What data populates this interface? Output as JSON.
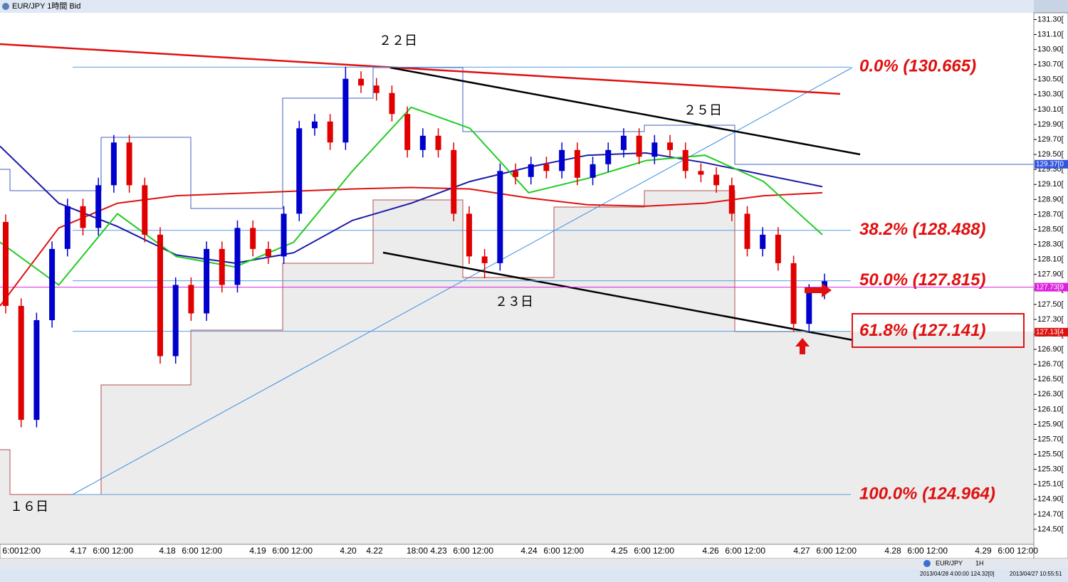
{
  "window_title": "EUR/JPY 1時間 Bid",
  "chart_data": {
    "type": "candlestick",
    "ylim": [
      124.3,
      131.39
    ],
    "yticks": [
      {
        "value": 124.5,
        "label": "124.50["
      },
      {
        "value": 124.7,
        "label": "124.70["
      },
      {
        "value": 124.9,
        "label": "124.90["
      },
      {
        "value": 125.1,
        "label": "125.10["
      },
      {
        "value": 125.3,
        "label": "125.30["
      },
      {
        "value": 125.5,
        "label": "125.50["
      },
      {
        "value": 125.7,
        "label": "125.70["
      },
      {
        "value": 125.9,
        "label": "125.90["
      },
      {
        "value": 126.1,
        "label": "126.10["
      },
      {
        "value": 126.3,
        "label": "126.30["
      },
      {
        "value": 126.5,
        "label": "126.50["
      },
      {
        "value": 126.7,
        "label": "126.70["
      },
      {
        "value": 126.9,
        "label": "126.90["
      },
      {
        "value": 127.1,
        "label": "127.10["
      },
      {
        "value": 127.3,
        "label": "127.30["
      },
      {
        "value": 127.5,
        "label": "127.50["
      },
      {
        "value": 127.7,
        "label": "127.70["
      },
      {
        "value": 127.9,
        "label": "127.90["
      },
      {
        "value": 128.1,
        "label": "128.10["
      },
      {
        "value": 128.3,
        "label": "128.30["
      },
      {
        "value": 128.5,
        "label": "128.50["
      },
      {
        "value": 128.7,
        "label": "128.70["
      },
      {
        "value": 128.9,
        "label": "128.90["
      },
      {
        "value": 129.1,
        "label": "129.10["
      },
      {
        "value": 129.3,
        "label": "129.30["
      },
      {
        "value": 129.5,
        "label": "129.50["
      },
      {
        "value": 129.7,
        "label": "129.70["
      },
      {
        "value": 129.9,
        "label": "129.90["
      },
      {
        "value": 130.1,
        "label": "130.10["
      },
      {
        "value": 130.3,
        "label": "130.30["
      },
      {
        "value": 130.5,
        "label": "130.50["
      },
      {
        "value": 130.7,
        "label": "130.70["
      },
      {
        "value": 130.9,
        "label": "130.90["
      },
      {
        "value": 131.1,
        "label": "131.10["
      },
      {
        "value": 131.3,
        "label": "131.30["
      }
    ],
    "x_labels": [
      "6:00",
      "12:00",
      "4.17",
      "6:00",
      "12:00",
      "4.18",
      "6:00",
      "12:00",
      "4.19",
      "6:00",
      "12:00",
      "4.20",
      "4.22",
      "18:00",
      "4.23",
      "6:00",
      "12:00",
      "4.24",
      "6:00",
      "12:00",
      "4.25",
      "6:00",
      "12:00",
      "4.26",
      "6:00",
      "12:00",
      "4.27",
      "6:00",
      "12:00",
      "4.28",
      "6:00",
      "12:00",
      "4.29",
      "6:00",
      "12:00"
    ],
    "up_color": "#0000cc",
    "down_color": "#e00000",
    "candles": {
      "open": [
        128.6,
        127.48,
        125.96,
        127.29,
        128.24,
        128.81,
        128.52,
        129.09,
        129.66,
        129.09,
        128.43,
        126.81,
        127.76,
        127.38,
        128.24,
        127.76,
        128.52,
        128.24,
        128.14,
        128.71,
        129.85,
        129.94,
        129.66,
        130.51,
        130.42,
        130.32,
        130.04,
        129.56,
        129.75,
        129.56,
        128.71,
        128.14,
        128.05,
        129.28,
        129.2,
        129.37,
        129.28,
        129.56,
        129.19,
        129.37,
        129.56,
        129.75,
        129.47,
        129.66,
        129.56,
        129.28,
        129.23,
        129.09,
        128.71,
        128.24,
        128.43,
        128.05,
        127.24,
        127.67
      ],
      "high": [
        128.7,
        127.58,
        127.39,
        128.34,
        128.91,
        128.91,
        129.19,
        129.76,
        129.76,
        129.19,
        128.53,
        127.86,
        127.86,
        128.34,
        128.34,
        128.62,
        128.62,
        128.34,
        128.81,
        129.95,
        130.04,
        130.04,
        130.67,
        130.61,
        130.52,
        130.42,
        130.14,
        129.85,
        129.85,
        129.66,
        128.81,
        128.24,
        129.38,
        129.38,
        129.47,
        129.47,
        129.66,
        129.66,
        129.47,
        129.66,
        129.85,
        129.85,
        129.76,
        129.76,
        129.66,
        129.38,
        129.33,
        129.19,
        128.81,
        128.53,
        128.53,
        128.15,
        127.77,
        127.91
      ],
      "low": [
        127.38,
        125.86,
        125.86,
        127.19,
        128.14,
        128.42,
        128.42,
        128.99,
        128.99,
        128.33,
        126.71,
        126.71,
        127.28,
        127.28,
        127.66,
        127.66,
        128.14,
        128.04,
        128.04,
        128.61,
        129.75,
        129.56,
        129.56,
        130.32,
        130.22,
        129.94,
        129.46,
        129.46,
        129.46,
        128.61,
        128.04,
        127.85,
        127.95,
        129.1,
        129.1,
        129.18,
        129.18,
        129.09,
        129.09,
        129.27,
        129.46,
        129.37,
        129.37,
        129.46,
        129.18,
        129.13,
        128.99,
        128.61,
        128.14,
        128.14,
        127.95,
        127.14,
        127.14,
        127.57
      ],
      "close": [
        127.48,
        125.96,
        127.29,
        128.24,
        128.81,
        128.52,
        129.09,
        129.66,
        129.09,
        128.43,
        126.81,
        127.76,
        127.38,
        128.24,
        127.76,
        128.52,
        128.24,
        128.14,
        128.71,
        129.85,
        129.94,
        129.66,
        130.51,
        130.42,
        130.32,
        130.04,
        129.56,
        129.75,
        129.56,
        128.71,
        128.14,
        128.05,
        129.28,
        129.2,
        129.37,
        129.28,
        129.56,
        129.19,
        129.37,
        129.56,
        129.75,
        129.47,
        129.66,
        129.56,
        129.28,
        129.23,
        129.09,
        128.71,
        128.24,
        128.43,
        128.05,
        127.24,
        127.67,
        127.81
      ]
    },
    "series": [
      {
        "color": "#dd1111",
        "values": [
          127.48,
          128.52,
          128.85,
          128.95,
          128.98,
          129.01,
          129.04,
          129.06,
          129.04,
          128.92,
          128.83,
          128.81,
          128.85,
          128.95,
          128.99
        ]
      },
      {
        "color": "#1a1aa8",
        "values": [
          129.61,
          128.85,
          128.54,
          128.16,
          128.05,
          128.19,
          128.62,
          128.85,
          129.14,
          129.33,
          129.49,
          129.52,
          129.39,
          129.23,
          129.07
        ]
      },
      {
        "color": "#22cc22",
        "values": [
          128.33,
          127.76,
          128.71,
          128.14,
          128.0,
          128.33,
          129.28,
          130.13,
          129.85,
          128.99,
          129.18,
          129.42,
          129.49,
          129.14,
          128.43
        ]
      }
    ],
    "fib_levels": [
      {
        "label": "0.0%  (130.665)",
        "price": 130.665
      },
      {
        "label": "38.2%  (128.488)",
        "price": 128.488
      },
      {
        "label": "50.0%  (127.815)",
        "price": 127.815
      },
      {
        "label": "61.8%  (127.141)",
        "price": 127.141
      },
      {
        "label": "100.0%  (124.964)",
        "price": 124.964
      }
    ],
    "price_markers": [
      {
        "label": "129.37[0",
        "value": 129.37,
        "color": "#3355dd"
      },
      {
        "label": "127.73[9",
        "value": 127.73,
        "color": "#dd22dd"
      },
      {
        "label": "127.13[4",
        "value": 127.13,
        "color": "#dd1111"
      }
    ],
    "annotations": [
      "２２日",
      "２５日",
      "２３日",
      "１６日"
    ]
  },
  "status_bar": {
    "symbol": "EUR/JPY",
    "timeframe": "1H",
    "cursor": "2013/04/28 4:00:00  124.32[0]",
    "clock": "2013/04/27 10:55:51"
  }
}
